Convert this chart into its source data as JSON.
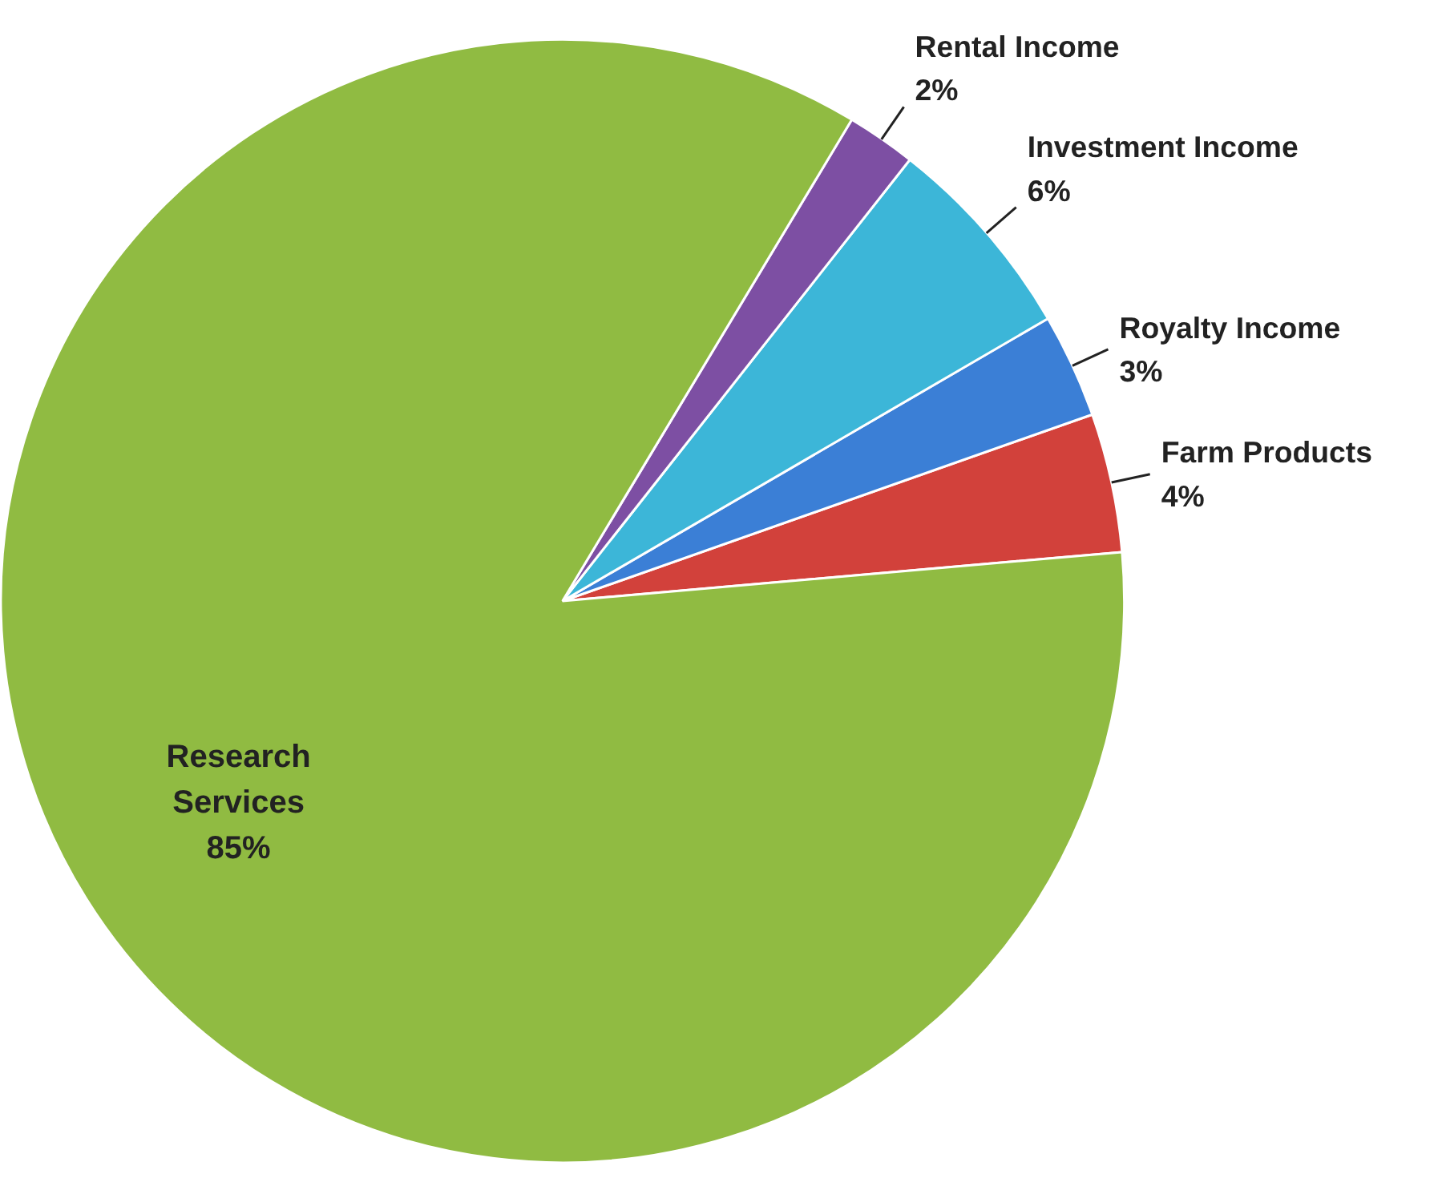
{
  "chart_data": {
    "type": "pie",
    "categories": [
      "Farm Products",
      "Royalty Income",
      "Investment Income",
      "Rental Income",
      "Research Services"
    ],
    "values": [
      4,
      3,
      6,
      2,
      85
    ],
    "value_labels": [
      "4%",
      "3%",
      "6%",
      "2%",
      "85%"
    ],
    "colors": [
      "#d2413b",
      "#3b7fd6",
      "#3cb6d8",
      "#7d4fa3",
      "#90bb42"
    ]
  }
}
